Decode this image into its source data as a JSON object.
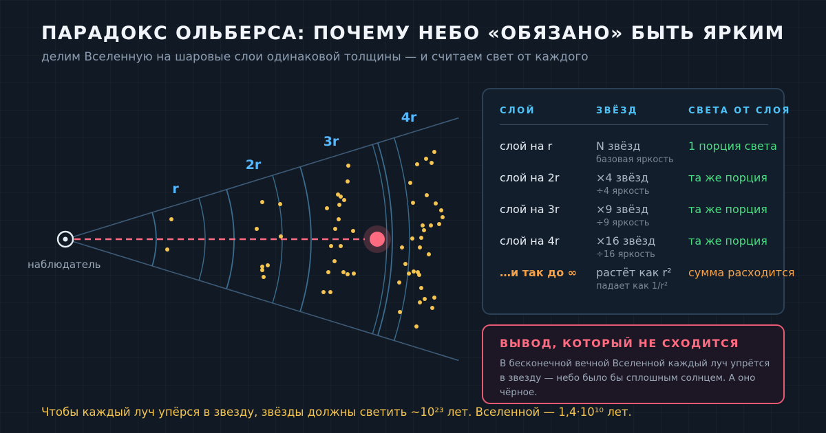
{
  "header": {
    "title": "ПАРАДОКС ОЛЬБЕРСА: ПОЧЕМУ НЕБО «ОБЯЗАНО» БЫТЬ ЯРКИМ",
    "subtitle": "делим Вселенную на шаровые слои одинаковой толщины — и считаем свет от каждого"
  },
  "diagram": {
    "observer_label": "наблюдатель",
    "layer_labels": [
      "r",
      "2r",
      "3r",
      "4r"
    ],
    "colors": {
      "cone": "#3e5a76",
      "shell_arcs": "#3a6c8e",
      "stars": "#f5c451",
      "ray": "#ff6b81",
      "target_star": "#ff6b81",
      "observer": "#e6edf5",
      "layer_label": "#56b8ff"
    }
  },
  "table": {
    "headers": {
      "layer": "СЛОЙ",
      "stars": "ЗВЁЗД",
      "light": "СВЕТА ОТ СЛОЯ"
    },
    "rows": [
      {
        "layer": "слой на r",
        "stars": "N звёзд",
        "note": "базовая яркость",
        "light": "1 порция света"
      },
      {
        "layer": "слой на 2r",
        "stars": "×4 звёзд",
        "note": "÷4 яркость",
        "light": "та же порция"
      },
      {
        "layer": "слой на 3r",
        "stars": "×9 звёзд",
        "note": "÷9 яркость",
        "light": "та же порция"
      },
      {
        "layer": "слой на 4r",
        "stars": "×16 звёзд",
        "note": "÷16 яркость",
        "light": "та же порция"
      },
      {
        "layer": "…и так до ∞",
        "stars": "растёт как r²",
        "note": "падает как 1/r²",
        "light": "сумма расходится"
      }
    ]
  },
  "conclusion": {
    "title": "ВЫВОД, КОТОРЫЙ НЕ СХОДИТСЯ",
    "text": "В бесконечной вечной Вселенной каждый луч упрётся в звезду — небо было бы сплошным солнцем. А оно чёрное."
  },
  "footnote": "Чтобы каждый луч упёрся в звезду, звёзды должны светить ~10²³ лет. Вселенной — 1,4·10¹⁰ лет."
}
